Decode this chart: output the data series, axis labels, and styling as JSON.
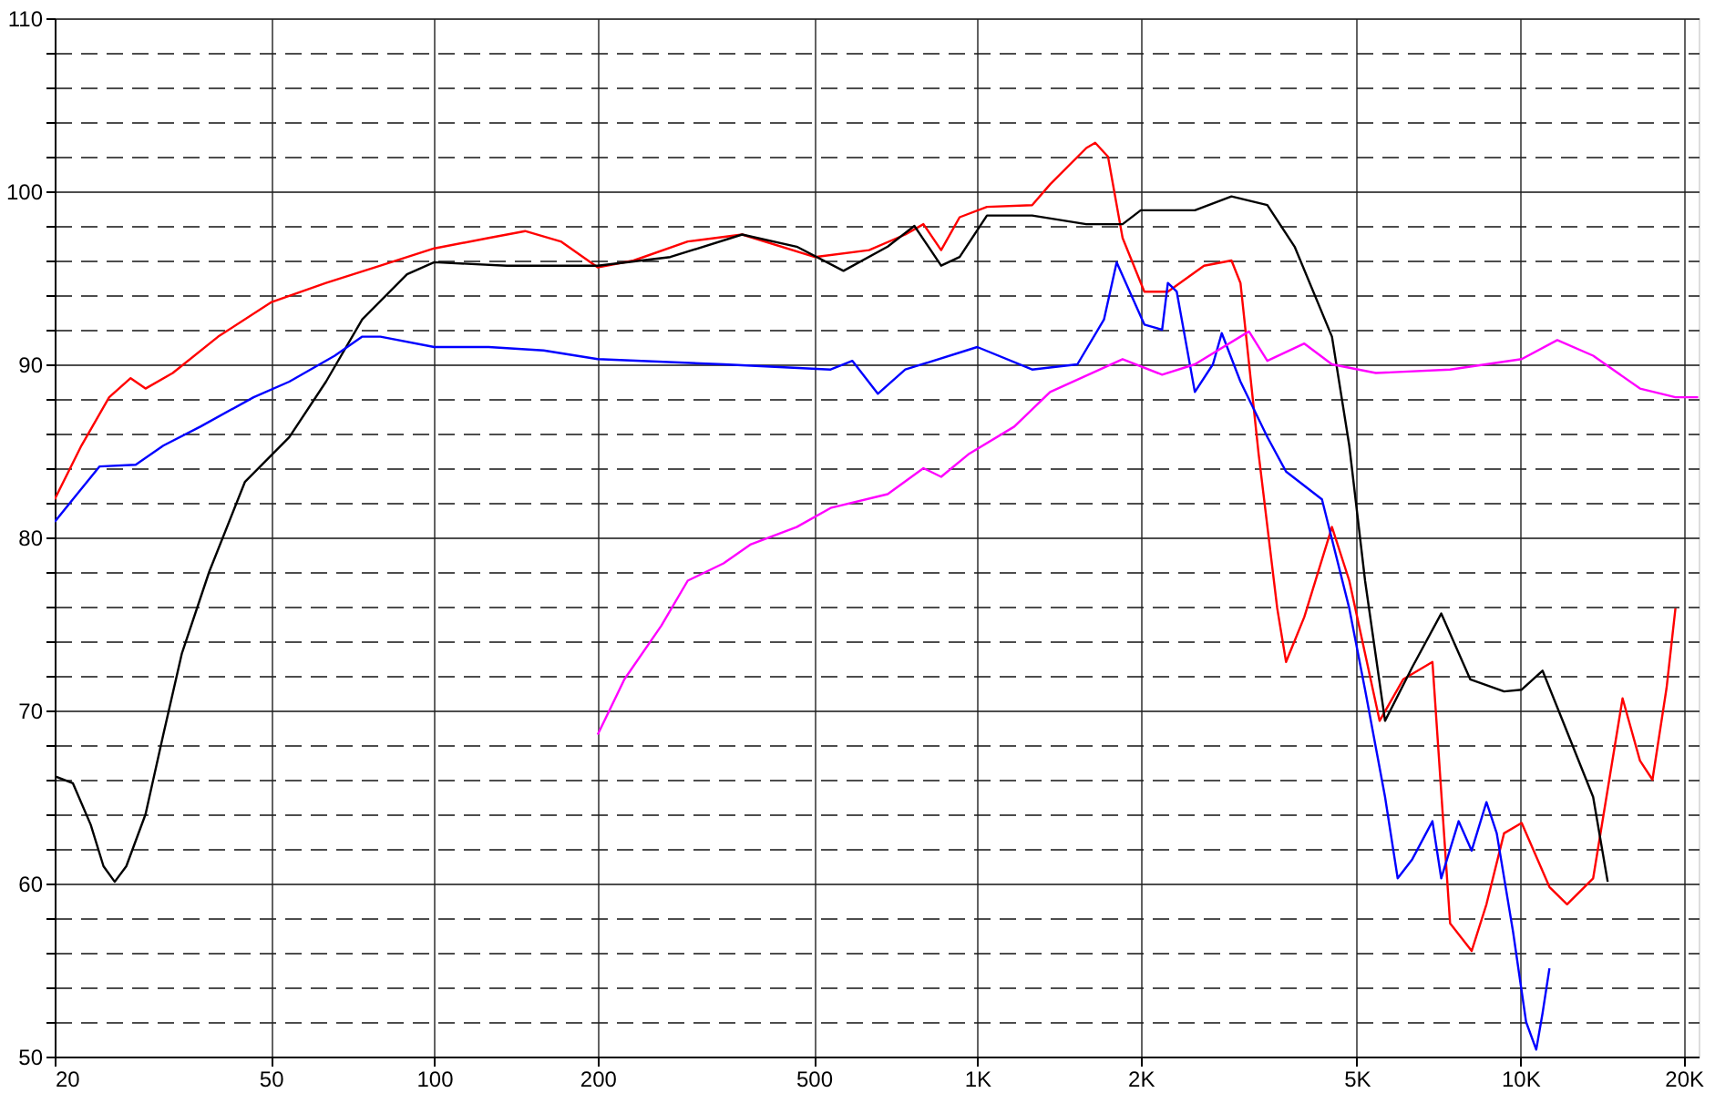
{
  "chart_data": {
    "type": "line",
    "log": "x",
    "grid": true,
    "line_style": "solid",
    "xlim": [
      20,
      21300
    ],
    "ylim": [
      50,
      110
    ],
    "xticks": [
      20,
      50,
      100,
      200,
      500,
      {
        "value": 1000,
        "label": "1K"
      },
      {
        "value": 2000,
        "label": "2K"
      },
      {
        "value": 5000,
        "label": "5K"
      },
      {
        "value": 10000,
        "label": "10K"
      },
      {
        "value": 20000,
        "label": "20K"
      }
    ],
    "yticks": [
      50,
      {
        "value": 52,
        "label": null
      },
      {
        "value": 54,
        "label": null
      },
      {
        "value": 56,
        "label": null
      },
      {
        "value": 58,
        "label": null
      },
      60,
      {
        "value": 62,
        "label": null
      },
      {
        "value": 64,
        "label": null
      },
      {
        "value": 66,
        "label": null
      },
      {
        "value": 68,
        "label": null
      },
      70,
      {
        "value": 72,
        "label": null
      },
      {
        "value": 74,
        "label": null
      },
      {
        "value": 76,
        "label": null
      },
      {
        "value": 78,
        "label": null
      },
      80,
      {
        "value": 82,
        "label": null
      },
      {
        "value": 84,
        "label": null
      },
      {
        "value": 86,
        "label": null
      },
      {
        "value": 88,
        "label": null
      },
      90,
      {
        "value": 92,
        "label": null
      },
      {
        "value": 94,
        "label": null
      },
      {
        "value": 96,
        "label": null
      },
      {
        "value": 98,
        "label": null
      },
      100,
      {
        "value": 102,
        "label": null
      },
      {
        "value": 104,
        "label": null
      },
      {
        "value": 106,
        "label": null
      },
      {
        "value": 108,
        "label": null
      },
      110
    ],
    "series": [
      {
        "color": "#ff0000",
        "x": [
          20,
          22.4,
          25.2,
          27.6,
          29.4,
          33,
          40,
          50.2,
          63.2,
          79.6,
          100,
          126,
          147,
          171,
          200,
          233,
          293,
          369,
          502,
          632,
          737,
          796,
          858,
          928,
          1042,
          1262,
          1362,
          1588,
          1649,
          1741,
          1852,
          2031,
          2244,
          2616,
          2939,
          3053,
          3298,
          3568,
          3704,
          4002,
          4500,
          4843,
          5508,
          6088,
          6891,
          7426,
          8137,
          8664,
          9335,
          10059,
          11317,
          12195,
          13620,
          15431,
          16612,
          17516,
          18595,
          19309
        ],
        "values": [
          82.2,
          85.3,
          88.1,
          89.2,
          88.6,
          89.5,
          91.6,
          93.6,
          94.7,
          95.7,
          96.7,
          97.3,
          97.7,
          97.1,
          95.6,
          96,
          97.1,
          97.5,
          96.2,
          96.6,
          97.5,
          98.1,
          96.6,
          98.5,
          99.1,
          99.2,
          100.4,
          102.5,
          102.8,
          102,
          97.3,
          94.2,
          94.2,
          95.7,
          96,
          94.7,
          84.8,
          75.9,
          72.8,
          75.4,
          80.6,
          77.5,
          69.4,
          71.8,
          72.8,
          57.7,
          56.1,
          58.8,
          62.9,
          63.5,
          59.8,
          58.8,
          60.3,
          70.7,
          67.1,
          66,
          71.3,
          75.9
        ]
      },
      {
        "color": "#000000",
        "x": [
          20,
          21.6,
          23.3,
          24.6,
          25.8,
          27.1,
          29.4,
          31.7,
          34.3,
          38.5,
          44.8,
          54.1,
          63.2,
          73.7,
          89.1,
          100,
          136,
          200,
          272,
          369,
          465,
          567,
          684,
          766,
          858,
          928,
          1042,
          1262,
          1588,
          1852,
          2000,
          2516,
          2939,
          3421,
          3841,
          4500,
          4843,
          5178,
          5636,
          6325,
          7152,
          8087,
          9335,
          10059,
          10990,
          11866,
          13620,
          14488
        ],
        "values": [
          66.2,
          65.8,
          63.4,
          61,
          60.1,
          61,
          64,
          68.6,
          73.3,
          78,
          83.2,
          85.8,
          89,
          92.6,
          95.2,
          95.9,
          95.7,
          95.7,
          96.2,
          97.5,
          96.8,
          95.4,
          96.8,
          98,
          95.7,
          96.2,
          98.6,
          98.6,
          98.1,
          98.1,
          98.9,
          98.9,
          99.7,
          99.2,
          96.8,
          91.6,
          85.3,
          77.5,
          69.4,
          72.5,
          75.6,
          71.8,
          71.1,
          71.2,
          72.3,
          69.7,
          65,
          60.1
        ]
      },
      {
        "color": "#0000ff",
        "x": [
          20,
          21.6,
          24.2,
          28.2,
          31.7,
          37.1,
          46.5,
          54.1,
          65.6,
          73.7,
          79.6,
          100,
          126,
          159,
          200,
          341,
          537,
          589,
          656,
          737,
          1000,
          1262,
          1529,
          1712,
          1806,
          2031,
          2190,
          2244,
          2330,
          2516,
          2716,
          2820,
          3053,
          3421,
          3704,
          4313,
          4843,
          5178,
          5636,
          5946,
          6325,
          6891,
          7152,
          7700,
          8137,
          8664,
          9050,
          9700,
          10250,
          10700,
          10990,
          11317
        ],
        "values": [
          80.9,
          82.2,
          84.1,
          84.2,
          85.3,
          86.4,
          88.1,
          89,
          90.5,
          91.6,
          91.6,
          91,
          91,
          90.8,
          90.3,
          90,
          89.7,
          90.2,
          88.3,
          89.7,
          91,
          89.7,
          90,
          92.6,
          95.9,
          92.3,
          92,
          94.7,
          94.2,
          88.4,
          90,
          91.8,
          89,
          85.8,
          83.8,
          82.2,
          75.9,
          71.2,
          65,
          60.3,
          61.4,
          63.6,
          60.3,
          63.6,
          61.9,
          64.7,
          62.9,
          57.2,
          52,
          50.4,
          52.5,
          55.1
        ]
      },
      {
        "color": "#ff00ff",
        "x": [
          200,
          224,
          262,
          293,
          341,
          383,
          465,
          537,
          684,
          796,
          858,
          963,
          1170,
          1362,
          1852,
          2190,
          2516,
          3165,
          3421,
          4002,
          4500,
          5420,
          7426,
          10059,
          11700,
          13620,
          16612,
          19309,
          21260
        ],
        "values": [
          68.6,
          71.8,
          74.9,
          77.5,
          78.5,
          79.6,
          80.6,
          81.7,
          82.5,
          84,
          83.5,
          84.8,
          86.4,
          88.4,
          90.3,
          89.4,
          90,
          91.9,
          90.2,
          91.2,
          90,
          89.5,
          89.7,
          90.3,
          91.4,
          90.5,
          88.6,
          88.1,
          88.1
        ]
      }
    ]
  }
}
